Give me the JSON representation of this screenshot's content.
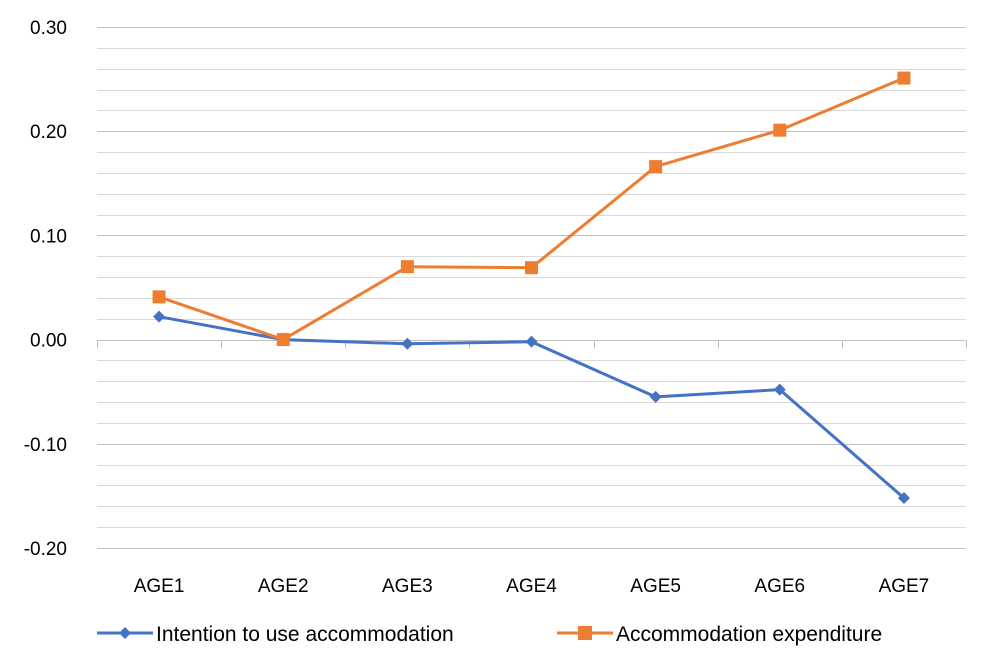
{
  "chart_data": {
    "type": "line",
    "categories": [
      "AGE1",
      "AGE2",
      "AGE3",
      "AGE4",
      "AGE5",
      "AGE6",
      "AGE7"
    ],
    "series": [
      {
        "name": "Intention to use accommodation",
        "color": "#4472c4",
        "marker": "diamond",
        "values": [
          0.022,
          0.0,
          -0.004,
          -0.002,
          -0.055,
          -0.048,
          -0.152
        ]
      },
      {
        "name": "Accommodation expenditure",
        "color": "#ed7d31",
        "marker": "square",
        "values": [
          0.041,
          0.0,
          0.07,
          0.069,
          0.166,
          0.201,
          0.251
        ]
      }
    ],
    "ylim": [
      -0.2,
      0.3
    ],
    "y_ticks": [
      0.3,
      0.2,
      0.1,
      0.0,
      -0.1,
      -0.2
    ],
    "y_tick_labels": [
      "0.30",
      "0.20",
      "0.10",
      "0.00",
      "-0.10",
      "-0.20"
    ],
    "grid": "on",
    "minor_grid": "on",
    "legend_position": "bottom"
  }
}
